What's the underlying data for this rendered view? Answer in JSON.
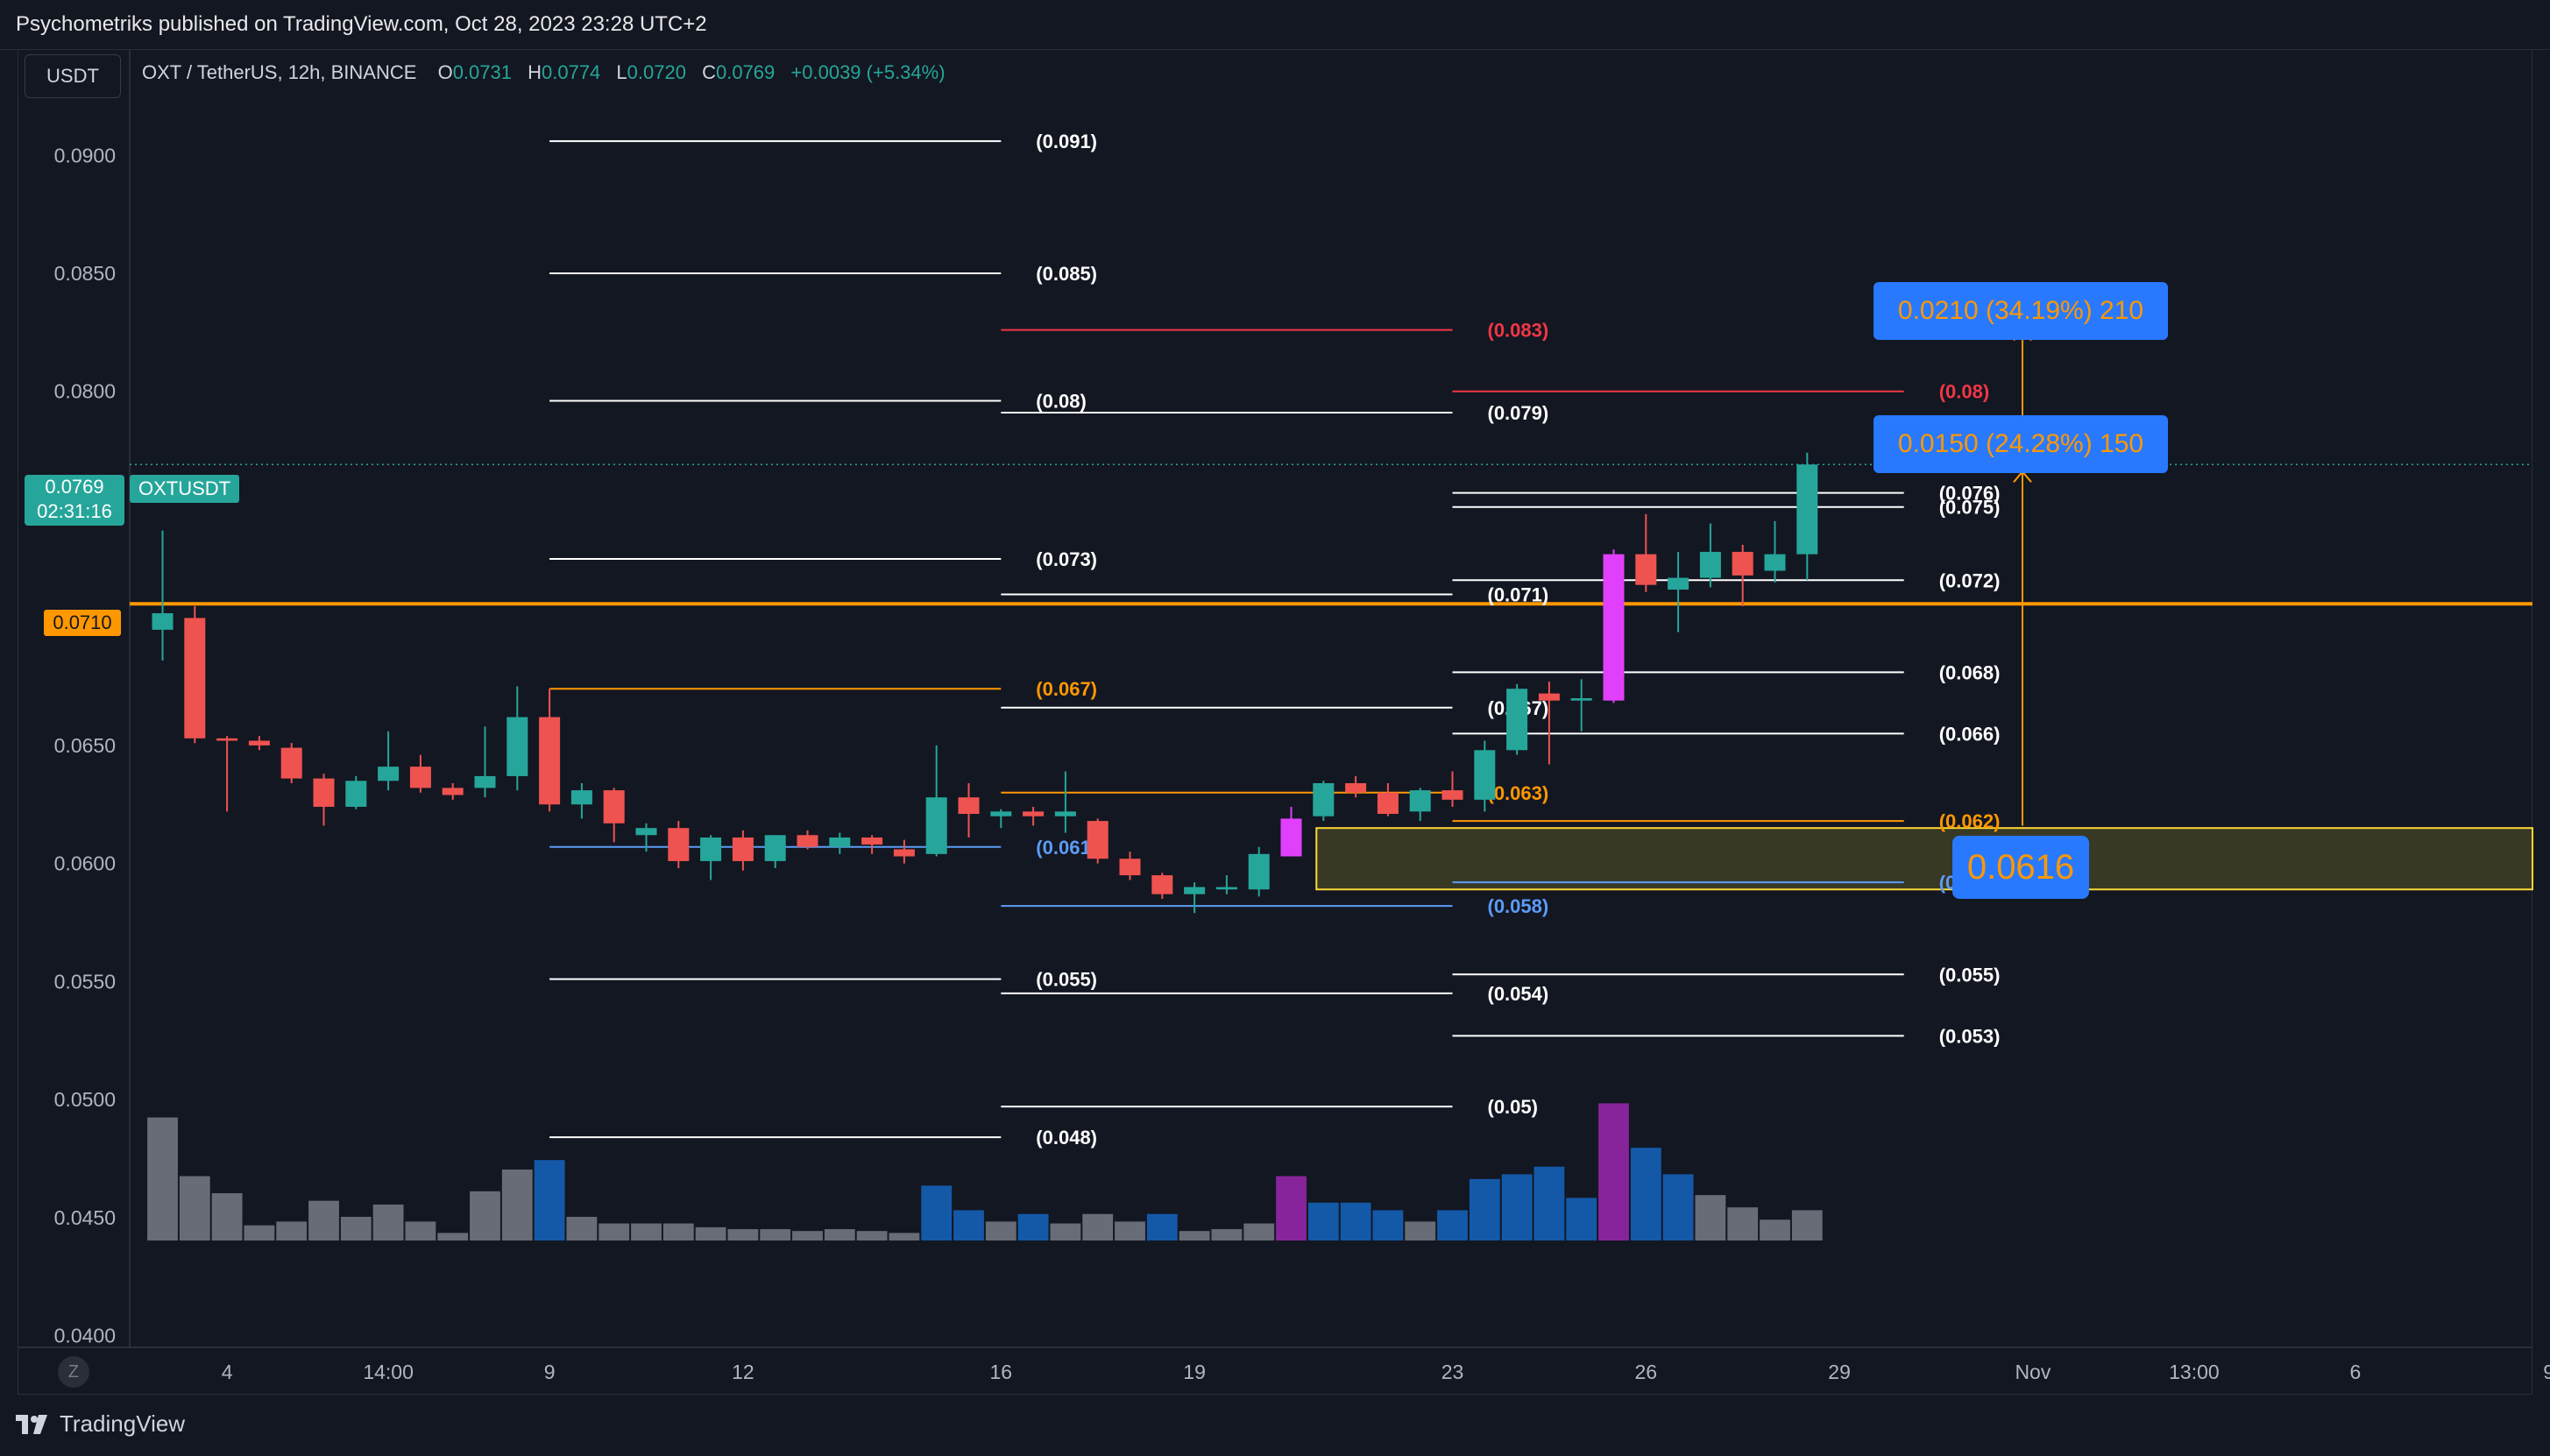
{
  "header": {
    "published": "Psychometriks published on TradingView.com, Oct 28, 2023 23:28 UTC+2"
  },
  "currency_button": "USDT",
  "legend": {
    "symbol": "OXT / TetherUS, 12h, BINANCE",
    "o_label": "O",
    "o": "0.0731",
    "h_label": "H",
    "h": "0.0774",
    "l_label": "L",
    "l": "0.0720",
    "c_label": "C",
    "c": "0.0769",
    "change": "+0.0039 (+5.34%)"
  },
  "price_tag": {
    "price": "0.0769",
    "countdown": "02:31:16",
    "symbol": "OXTUSDT"
  },
  "level_tag": "0.0710",
  "entry_tag": "0.0616",
  "targets": [
    {
      "text": "0.0210 (34.19%) 210"
    },
    {
      "text": "0.0150 (24.28%) 150"
    }
  ],
  "footer": {
    "brand": "TradingView",
    "zoom_button": "Z"
  },
  "colors": {
    "up": "#26a69a",
    "down": "#ef5350",
    "accent": "#ff9800",
    "highlight": "#e040fb",
    "blue": "#2962ff",
    "grey": "#787b86"
  },
  "chart_data": {
    "type": "candlestick",
    "title": "",
    "ylim": [
      0.0395,
      0.0945
    ],
    "y_ticks": [
      "0.0900",
      "0.0850",
      "0.0800",
      "0.0750",
      "0.0700",
      "0.0650",
      "0.0600",
      "0.0550",
      "0.0500",
      "0.0450",
      "0.0400"
    ],
    "x_ticks": [
      {
        "label": "4",
        "i": 2
      },
      {
        "label": "14:00",
        "i": 7
      },
      {
        "label": "9",
        "i": 12
      },
      {
        "label": "12",
        "i": 18
      },
      {
        "label": "16",
        "i": 26
      },
      {
        "label": "19",
        "i": 32
      },
      {
        "label": "23",
        "i": 40
      },
      {
        "label": "26",
        "i": 46
      },
      {
        "label": "29",
        "i": 52
      },
      {
        "label": "Nov",
        "i": 58
      },
      {
        "label": "13:00",
        "i": 63
      },
      {
        "label": "6",
        "i": 68
      },
      {
        "label": "9",
        "i": 74
      }
    ],
    "candles": [
      {
        "o": 0.0699,
        "h": 0.0741,
        "l": 0.0686,
        "c": 0.0706,
        "v": 1.3
      },
      {
        "o": 0.0704,
        "h": 0.0709,
        "l": 0.0651,
        "c": 0.0653,
        "v": 0.68
      },
      {
        "o": 0.0653,
        "h": 0.0654,
        "l": 0.0622,
        "c": 0.0652,
        "v": 0.5
      },
      {
        "o": 0.0652,
        "h": 0.0654,
        "l": 0.0648,
        "c": 0.065,
        "v": 0.16
      },
      {
        "o": 0.0649,
        "h": 0.0651,
        "l": 0.0634,
        "c": 0.0636,
        "v": 0.2
      },
      {
        "o": 0.0636,
        "h": 0.0638,
        "l": 0.0616,
        "c": 0.0624,
        "v": 0.42
      },
      {
        "o": 0.0624,
        "h": 0.0637,
        "l": 0.0623,
        "c": 0.0635,
        "v": 0.25
      },
      {
        "o": 0.0635,
        "h": 0.0656,
        "l": 0.0631,
        "c": 0.0641,
        "v": 0.38
      },
      {
        "o": 0.0641,
        "h": 0.0646,
        "l": 0.063,
        "c": 0.0632,
        "v": 0.2
      },
      {
        "o": 0.0632,
        "h": 0.0634,
        "l": 0.0627,
        "c": 0.0629,
        "v": 0.08
      },
      {
        "o": 0.0632,
        "h": 0.0658,
        "l": 0.0628,
        "c": 0.0637,
        "v": 0.52
      },
      {
        "o": 0.0637,
        "h": 0.0675,
        "l": 0.0631,
        "c": 0.0662,
        "v": 0.75
      },
      {
        "o": 0.0662,
        "h": 0.0674,
        "l": 0.0622,
        "c": 0.0625,
        "v": 0.85,
        "vc": "blue"
      },
      {
        "o": 0.0625,
        "h": 0.0634,
        "l": 0.0619,
        "c": 0.0631,
        "v": 0.25
      },
      {
        "o": 0.0631,
        "h": 0.0632,
        "l": 0.0609,
        "c": 0.0617,
        "v": 0.18
      },
      {
        "o": 0.0612,
        "h": 0.0617,
        "l": 0.0605,
        "c": 0.0615,
        "v": 0.18
      },
      {
        "o": 0.0615,
        "h": 0.0618,
        "l": 0.0598,
        "c": 0.0601,
        "v": 0.18
      },
      {
        "o": 0.0601,
        "h": 0.0612,
        "l": 0.0593,
        "c": 0.0611,
        "v": 0.14
      },
      {
        "o": 0.0611,
        "h": 0.0614,
        "l": 0.0597,
        "c": 0.0601,
        "v": 0.12
      },
      {
        "o": 0.0601,
        "h": 0.0612,
        "l": 0.0598,
        "c": 0.0612,
        "v": 0.12
      },
      {
        "o": 0.0612,
        "h": 0.0614,
        "l": 0.0606,
        "c": 0.0607,
        "v": 0.1
      },
      {
        "o": 0.0607,
        "h": 0.0613,
        "l": 0.0604,
        "c": 0.0611,
        "v": 0.12
      },
      {
        "o": 0.0611,
        "h": 0.0612,
        "l": 0.0604,
        "c": 0.0608,
        "v": 0.1
      },
      {
        "o": 0.0606,
        "h": 0.061,
        "l": 0.06,
        "c": 0.0603,
        "v": 0.08
      },
      {
        "o": 0.0604,
        "h": 0.065,
        "l": 0.0603,
        "c": 0.0628,
        "v": 0.58,
        "vc": "blue"
      },
      {
        "o": 0.0628,
        "h": 0.0634,
        "l": 0.0611,
        "c": 0.0621,
        "v": 0.32,
        "vc": "blue"
      },
      {
        "o": 0.062,
        "h": 0.0623,
        "l": 0.0615,
        "c": 0.0622,
        "v": 0.2
      },
      {
        "o": 0.0622,
        "h": 0.0624,
        "l": 0.0616,
        "c": 0.062,
        "v": 0.28,
        "vc": "blue"
      },
      {
        "o": 0.062,
        "h": 0.0639,
        "l": 0.0613,
        "c": 0.0622,
        "v": 0.18
      },
      {
        "o": 0.0618,
        "h": 0.0619,
        "l": 0.06,
        "c": 0.0602,
        "v": 0.28
      },
      {
        "o": 0.0602,
        "h": 0.0605,
        "l": 0.0593,
        "c": 0.0595,
        "v": 0.2
      },
      {
        "o": 0.0595,
        "h": 0.0596,
        "l": 0.0585,
        "c": 0.0587,
        "v": 0.28,
        "vc": "blue"
      },
      {
        "o": 0.0587,
        "h": 0.0592,
        "l": 0.0579,
        "c": 0.059,
        "v": 0.1
      },
      {
        "o": 0.0589,
        "h": 0.0595,
        "l": 0.0587,
        "c": 0.059,
        "v": 0.12
      },
      {
        "o": 0.0589,
        "h": 0.0607,
        "l": 0.0586,
        "c": 0.0604,
        "v": 0.18
      },
      {
        "o": 0.0603,
        "h": 0.0624,
        "l": 0.0603,
        "c": 0.0619,
        "v": 0.68,
        "m": true
      },
      {
        "o": 0.062,
        "h": 0.0635,
        "l": 0.0618,
        "c": 0.0634,
        "v": 0.4,
        "vc": "blue"
      },
      {
        "o": 0.0634,
        "h": 0.0637,
        "l": 0.0628,
        "c": 0.063,
        "v": 0.4,
        "vc": "blue"
      },
      {
        "o": 0.063,
        "h": 0.0634,
        "l": 0.062,
        "c": 0.0621,
        "v": 0.32,
        "vc": "blue"
      },
      {
        "o": 0.0622,
        "h": 0.0632,
        "l": 0.0618,
        "c": 0.0631,
        "v": 0.2
      },
      {
        "o": 0.0631,
        "h": 0.0639,
        "l": 0.0624,
        "c": 0.0627,
        "v": 0.32,
        "vc": "blue"
      },
      {
        "o": 0.0627,
        "h": 0.0652,
        "l": 0.0622,
        "c": 0.0648,
        "v": 0.65,
        "vc": "blue"
      },
      {
        "o": 0.0648,
        "h": 0.0676,
        "l": 0.0646,
        "c": 0.0674,
        "v": 0.7,
        "vc": "blue"
      },
      {
        "o": 0.0672,
        "h": 0.0677,
        "l": 0.0642,
        "c": 0.0669,
        "v": 0.78,
        "vc": "blue"
      },
      {
        "o": 0.0669,
        "h": 0.0678,
        "l": 0.0656,
        "c": 0.067,
        "v": 0.45,
        "vc": "blue"
      },
      {
        "o": 0.0669,
        "h": 0.0733,
        "l": 0.0668,
        "c": 0.0731,
        "v": 1.45,
        "m": true
      },
      {
        "o": 0.0731,
        "h": 0.0748,
        "l": 0.0715,
        "c": 0.0718,
        "v": 0.98,
        "vc": "blue"
      },
      {
        "o": 0.0716,
        "h": 0.0732,
        "l": 0.0698,
        "c": 0.0721,
        "v": 0.7,
        "vc": "blue"
      },
      {
        "o": 0.0721,
        "h": 0.0744,
        "l": 0.0717,
        "c": 0.0732,
        "v": 0.48
      },
      {
        "o": 0.0732,
        "h": 0.0735,
        "l": 0.0709,
        "c": 0.0722,
        "v": 0.35
      },
      {
        "o": 0.0724,
        "h": 0.0745,
        "l": 0.0719,
        "c": 0.0731,
        "v": 0.22
      },
      {
        "o": 0.0731,
        "h": 0.0774,
        "l": 0.072,
        "c": 0.0769,
        "v": 0.32
      }
    ],
    "annotations": {
      "lines": [
        {
          "x0": 12,
          "x1": 26,
          "y": 0.0906,
          "c": "#ffffff",
          "label": "(0.091)"
        },
        {
          "x0": 12,
          "x1": 26,
          "y": 0.085,
          "c": "#ffffff",
          "label": "(0.085)"
        },
        {
          "x0": 12,
          "x1": 26,
          "y": 0.0796,
          "c": "#ffffff",
          "label": "(0.08)"
        },
        {
          "x0": 12,
          "x1": 26,
          "y": 0.0729,
          "c": "#ffffff",
          "label": "(0.073)"
        },
        {
          "x0": 12,
          "x1": 26,
          "y": 0.0674,
          "c": "#ff9800",
          "label": "(0.067)"
        },
        {
          "x0": 12,
          "x1": 26,
          "y": 0.0607,
          "c": "#5b9cf6",
          "label": "(0.061)"
        },
        {
          "x0": 12,
          "x1": 26,
          "y": 0.0551,
          "c": "#ffffff",
          "label": "(0.055)"
        },
        {
          "x0": 12,
          "x1": 26,
          "y": 0.0484,
          "c": "#ffffff",
          "label": "(0.048)"
        },
        {
          "x0": 26,
          "x1": 40,
          "y": 0.0826,
          "c": "#f23645",
          "label": "(0.083)"
        },
        {
          "x0": 26,
          "x1": 40,
          "y": 0.0791,
          "c": "#ffffff",
          "label": "(0.079)"
        },
        {
          "x0": 26,
          "x1": 40,
          "y": 0.0714,
          "c": "#ffffff",
          "label": "(0.071)"
        },
        {
          "x0": 26,
          "x1": 40,
          "y": 0.0666,
          "c": "#ffffff",
          "label": "(0.067)"
        },
        {
          "x0": 26,
          "x1": 40,
          "y": 0.063,
          "c": "#ff9800",
          "label": "(0.063)"
        },
        {
          "x0": 26,
          "x1": 40,
          "y": 0.0582,
          "c": "#5b9cf6",
          "label": "(0.058)"
        },
        {
          "x0": 26,
          "x1": 40,
          "y": 0.0545,
          "c": "#ffffff",
          "label": "(0.054)"
        },
        {
          "x0": 26,
          "x1": 40,
          "y": 0.0497,
          "c": "#ffffff",
          "label": "(0.05)"
        },
        {
          "x0": 40,
          "x1": 54,
          "y": 0.08,
          "c": "#f23645",
          "label": "(0.08)"
        },
        {
          "x0": 40,
          "x1": 54,
          "y": 0.0757,
          "c": "#ffffff",
          "label": "(0.076)"
        },
        {
          "x0": 40,
          "x1": 54,
          "y": 0.0751,
          "c": "#ffffff",
          "label": "(0.075)"
        },
        {
          "x0": 40,
          "x1": 54,
          "y": 0.072,
          "c": "#ffffff",
          "label": "(0.072)"
        },
        {
          "x0": 40,
          "x1": 54,
          "y": 0.0681,
          "c": "#ffffff",
          "label": "(0.068)"
        },
        {
          "x0": 40,
          "x1": 54,
          "y": 0.0655,
          "c": "#ffffff",
          "label": "(0.066)"
        },
        {
          "x0": 40,
          "x1": 54,
          "y": 0.0618,
          "c": "#ff9800",
          "label": "(0.062)"
        },
        {
          "x0": 40,
          "x1": 54,
          "y": 0.0592,
          "c": "#5b9cf6",
          "label": "(0.059)"
        },
        {
          "x0": 40,
          "x1": 54,
          "y": 0.0553,
          "c": "#ffffff",
          "label": "(0.055)"
        },
        {
          "x0": 40,
          "x1": 54,
          "y": 0.0527,
          "c": "#ffffff",
          "label": "(0.053)"
        }
      ],
      "horizontal_level": 0.071,
      "zone": {
        "x0": 36,
        "top": 0.0615,
        "bottom": 0.0589
      },
      "measure": {
        "from": 0.0616,
        "to1": 0.0766,
        "to2": 0.0826
      }
    }
  }
}
